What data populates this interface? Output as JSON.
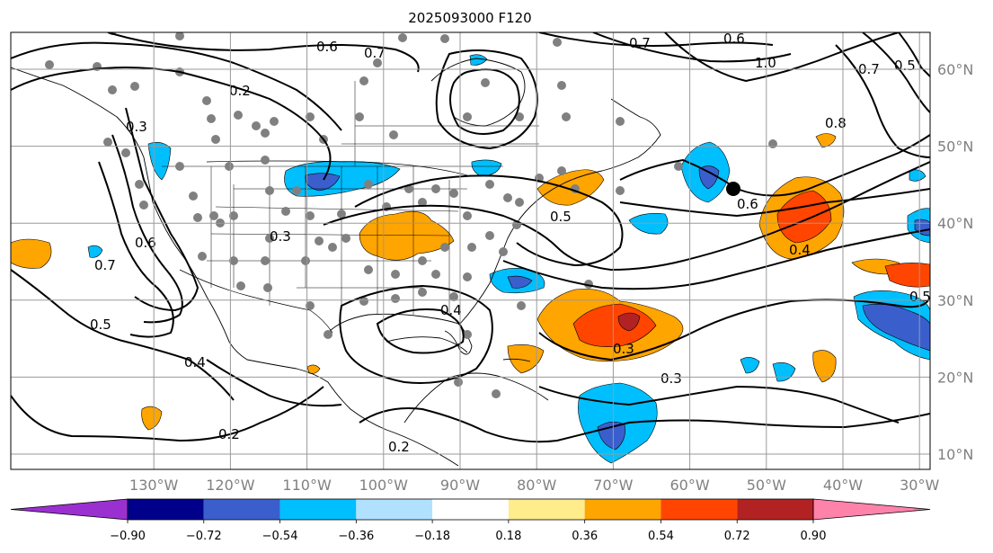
{
  "title": "2025093000 F120",
  "latitudes": [
    {
      "label": "60°N",
      "deg": 60
    },
    {
      "label": "50°N",
      "deg": 50
    },
    {
      "label": "40°N",
      "deg": 40
    },
    {
      "label": "30°N",
      "deg": 30
    },
    {
      "label": "20°N",
      "deg": 20
    },
    {
      "label": "10°N",
      "deg": 10
    }
  ],
  "longitudes": [
    {
      "label": "130°W",
      "deg": -130
    },
    {
      "label": "120°W",
      "deg": -120
    },
    {
      "label": "110°W",
      "deg": -110
    },
    {
      "label": "100°W",
      "deg": -100
    },
    {
      "label": "90°W",
      "deg": -90
    },
    {
      "label": "80°W",
      "deg": -80
    },
    {
      "label": "70°W",
      "deg": -70
    },
    {
      "label": "60°W",
      "deg": -60
    },
    {
      "label": "50°W",
      "deg": -50
    },
    {
      "label": "40°W",
      "deg": -40
    },
    {
      "label": "30°W",
      "deg": -30
    }
  ],
  "colorbar": {
    "ticks": [
      "−0.90",
      "−0.72",
      "−0.54",
      "−0.36",
      "−0.18",
      "0.18",
      "0.36",
      "0.54",
      "0.72",
      "0.90"
    ],
    "colors": [
      "#9b30d0",
      "#00008b",
      "#3a5fcd",
      "#00bfff",
      "#b0e2ff",
      "#ffffff",
      "#ffec8b",
      "#ffa500",
      "#ff4500",
      "#b22222",
      "#ff82ab"
    ]
  },
  "contour_labels": [
    "0.6",
    "0.7",
    "0.6",
    "1.0",
    "0.7",
    "0.5",
    "0.7",
    "0.2",
    "0.3",
    "0.8",
    "0.6",
    "0.5",
    "0.4",
    "0.3",
    "0.6",
    "0.7",
    "0.5",
    "0.4",
    "0.3",
    "0.3",
    "0.4",
    "0.2",
    "0.2",
    "0.5"
  ]
}
